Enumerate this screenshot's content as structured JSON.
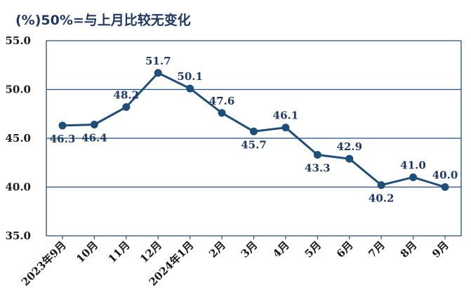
{
  "chart_data": {
    "type": "line",
    "title": "(%)50%=与上月比较无变化",
    "categories": [
      "2023年9月",
      "10月",
      "11月",
      "12月",
      "2024年1月",
      "2月",
      "3月",
      "4月",
      "5月",
      "6月",
      "7月",
      "8月",
      "9月"
    ],
    "series": [
      {
        "values": [
          46.3,
          46.4,
          48.2,
          51.7,
          50.1,
          47.6,
          45.7,
          46.1,
          43.3,
          42.9,
          40.2,
          41.0,
          40.0
        ]
      }
    ],
    "data_labels": [
      "46.3",
      "46.4",
      "48.2",
      "51.7",
      "50.1",
      "47.6",
      "45.7",
      "46.1",
      "43.3",
      "42.9",
      "40.2",
      "41.0",
      "40.0"
    ],
    "ylim": [
      35.0,
      55.0
    ],
    "yticks": [
      "35.0",
      "40.0",
      "45.0",
      "50.0",
      "55.0"
    ],
    "grid": true,
    "colors": {
      "line": "#1f4e79",
      "grid": "#1f4e79",
      "title": "#1f3864"
    }
  }
}
